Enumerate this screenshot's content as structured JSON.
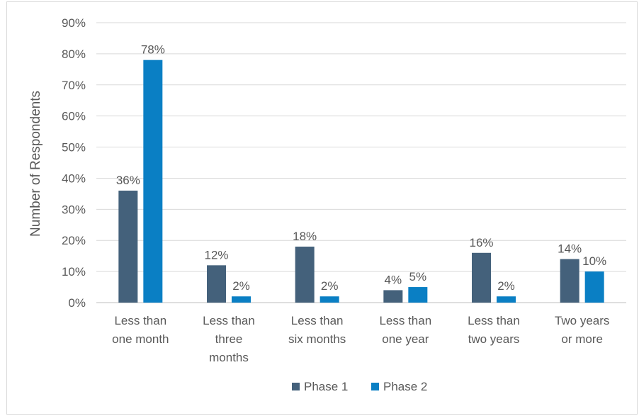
{
  "chart_data": {
    "type": "bar",
    "categories": [
      [
        "Less than",
        "one month"
      ],
      [
        "Less than",
        "three",
        "months"
      ],
      [
        "Less than",
        "six months"
      ],
      [
        "Less than",
        "one year"
      ],
      [
        "Less than",
        "two years"
      ],
      [
        "Two years",
        "or more"
      ]
    ],
    "series": [
      {
        "name": "Phase 1",
        "color": "#44617b",
        "values": [
          36,
          12,
          18,
          4,
          16,
          14
        ],
        "value_labels": [
          "36%",
          "12%",
          "18%",
          "4%",
          "16%",
          "14%"
        ]
      },
      {
        "name": "Phase 2",
        "color": "#0a7fc4",
        "values": [
          78,
          2,
          2,
          5,
          2,
          10
        ],
        "value_labels": [
          "78%",
          "2%",
          "2%",
          "5%",
          "2%",
          "10%"
        ]
      }
    ],
    "ylabel": "Number of Respondents",
    "xlabel": "",
    "ylim": [
      0,
      90
    ],
    "yticks": [
      "0%",
      "10%",
      "20%",
      "30%",
      "40%",
      "50%",
      "60%",
      "70%",
      "80%",
      "90%"
    ],
    "grid": true,
    "legend_position": "bottom"
  }
}
